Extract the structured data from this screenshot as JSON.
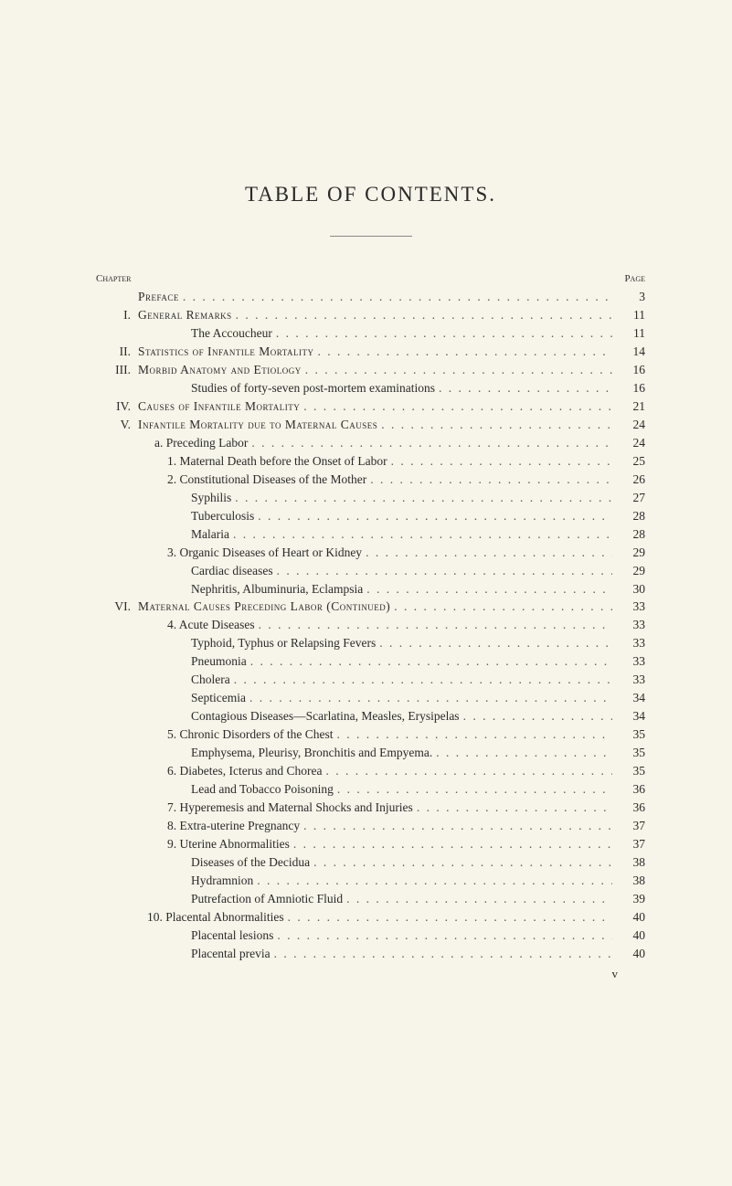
{
  "title": "TABLE OF CONTENTS.",
  "header": {
    "left": "Chapter",
    "right": "Page"
  },
  "footer_mark": "v",
  "colors": {
    "background": "#f7f4e9",
    "text": "#2a2a2a",
    "leader": "#555555",
    "rule": "#888888"
  },
  "typography": {
    "title_fontsize": 23,
    "body_fontsize": 13.5,
    "header_fontsize": 11,
    "line_height": 1.48,
    "font_family": "Georgia, Times New Roman, serif"
  },
  "entries": [
    {
      "chapter": "",
      "text": "Preface",
      "page": "3",
      "indent": 0,
      "smallcaps": true
    },
    {
      "chapter": "I.",
      "text": "General Remarks",
      "page": "11",
      "indent": 0,
      "smallcaps": true
    },
    {
      "chapter": "",
      "text": "The Accoucheur",
      "page": "11",
      "indent": 1,
      "smallcaps": false
    },
    {
      "chapter": "II.",
      "text": "Statistics of Infantile Mortality",
      "page": "14",
      "indent": 0,
      "smallcaps": true
    },
    {
      "chapter": "III.",
      "text": "Morbid Anatomy and Etiology",
      "page": "16",
      "indent": 0,
      "smallcaps": true
    },
    {
      "chapter": "",
      "text": "Studies of forty-seven post-mortem examinations",
      "page": "16",
      "indent": 1,
      "smallcaps": false
    },
    {
      "chapter": "IV.",
      "text": "Causes of Infantile Mortality",
      "page": "21",
      "indent": 0,
      "smallcaps": true
    },
    {
      "chapter": "V.",
      "text": "Infantile Mortality due to Maternal Causes",
      "page": "24",
      "indent": 0,
      "smallcaps": true
    },
    {
      "chapter": "",
      "text": "a. Preceding Labor",
      "page": "24",
      "indent": 2,
      "smallcaps": false
    },
    {
      "chapter": "",
      "text": "1. Maternal Death before the Onset of Labor",
      "page": "25",
      "indent": 3,
      "smallcaps": false
    },
    {
      "chapter": "",
      "text": "2. Constitutional Diseases of the Mother",
      "page": "26",
      "indent": 3,
      "smallcaps": false
    },
    {
      "chapter": "",
      "text": "Syphilis",
      "page": "27",
      "indent": 4,
      "smallcaps": false
    },
    {
      "chapter": "",
      "text": "Tuberculosis",
      "page": "28",
      "indent": 4,
      "smallcaps": false
    },
    {
      "chapter": "",
      "text": "Malaria",
      "page": "28",
      "indent": 4,
      "smallcaps": false
    },
    {
      "chapter": "",
      "text": "3. Organic Diseases of Heart or Kidney",
      "page": "29",
      "indent": 3,
      "smallcaps": false
    },
    {
      "chapter": "",
      "text": "Cardiac diseases",
      "page": "29",
      "indent": 4,
      "smallcaps": false
    },
    {
      "chapter": "",
      "text": "Nephritis, Albuminuria, Eclampsia",
      "page": "30",
      "indent": 4,
      "smallcaps": false
    },
    {
      "chapter": "VI.",
      "text": "Maternal Causes Preceding Labor (Continued)",
      "page": "33",
      "indent": 0,
      "smallcaps": true
    },
    {
      "chapter": "",
      "text": "4. Acute Diseases",
      "page": "33",
      "indent": 3,
      "smallcaps": false
    },
    {
      "chapter": "",
      "text": "Typhoid, Typhus or Relapsing Fevers",
      "page": "33",
      "indent": 4,
      "smallcaps": false
    },
    {
      "chapter": "",
      "text": "Pneumonia",
      "page": "33",
      "indent": 4,
      "smallcaps": false
    },
    {
      "chapter": "",
      "text": "Cholera",
      "page": "33",
      "indent": 4,
      "smallcaps": false
    },
    {
      "chapter": "",
      "text": "Septicemia",
      "page": "34",
      "indent": 4,
      "smallcaps": false
    },
    {
      "chapter": "",
      "text": "Contagious Diseases—Scarlatina, Measles, Erysipelas",
      "page": "34",
      "indent": 4,
      "smallcaps": false
    },
    {
      "chapter": "",
      "text": "5. Chronic Disorders of the Chest",
      "page": "35",
      "indent": 3,
      "smallcaps": false
    },
    {
      "chapter": "",
      "text": "Emphysema, Pleurisy, Bronchitis and Empyema.",
      "page": "35",
      "indent": 4,
      "smallcaps": false
    },
    {
      "chapter": "",
      "text": "6. Diabetes, Icterus and Chorea",
      "page": "35",
      "indent": 3,
      "smallcaps": false
    },
    {
      "chapter": "",
      "text": "Lead and Tobacco Poisoning",
      "page": "36",
      "indent": 4,
      "smallcaps": false
    },
    {
      "chapter": "",
      "text": "7. Hyperemesis and Maternal Shocks and Injuries",
      "page": "36",
      "indent": 3,
      "smallcaps": false
    },
    {
      "chapter": "",
      "text": "8. Extra-uterine Pregnancy",
      "page": "37",
      "indent": 3,
      "smallcaps": false
    },
    {
      "chapter": "",
      "text": "9. Uterine Abnormalities",
      "page": "37",
      "indent": 3,
      "smallcaps": false
    },
    {
      "chapter": "",
      "text": "Diseases of the Decidua",
      "page": "38",
      "indent": 4,
      "smallcaps": false
    },
    {
      "chapter": "",
      "text": "Hydramnion",
      "page": "38",
      "indent": 4,
      "smallcaps": false
    },
    {
      "chapter": "",
      "text": "Putrefaction of Amniotic Fluid",
      "page": "39",
      "indent": 4,
      "smallcaps": false
    },
    {
      "chapter": "",
      "text": "10. Placental Abnormalities",
      "page": "40",
      "indent": 5,
      "smallcaps": false
    },
    {
      "chapter": "",
      "text": "Placental lesions",
      "page": "40",
      "indent": 4,
      "smallcaps": false
    },
    {
      "chapter": "",
      "text": "Placental previa",
      "page": "40",
      "indent": 4,
      "smallcaps": false
    }
  ]
}
